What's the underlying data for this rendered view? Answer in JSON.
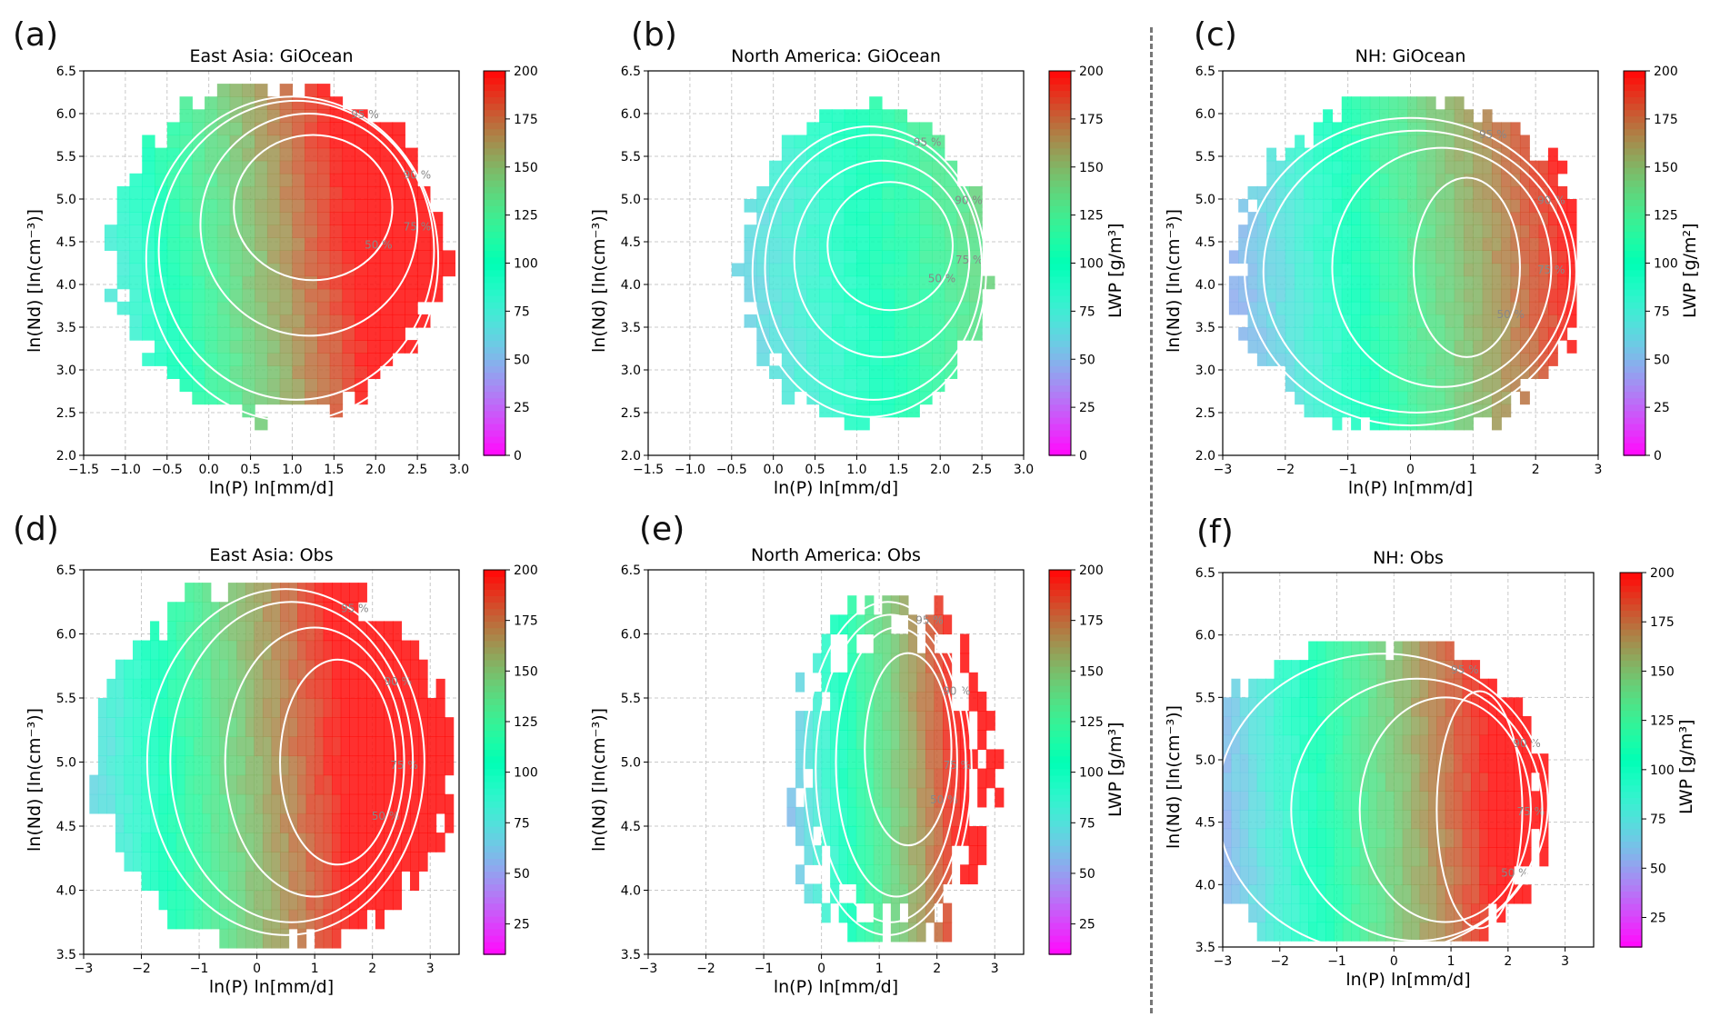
{
  "figure": {
    "divider": "dashed-vertical-separator",
    "colormap": "rainbow"
  },
  "chart_data": [
    {
      "letter": "(a)",
      "type": "heatmap",
      "title": "East Asia: GiOcean",
      "xlabel": "ln(P) ln[mm/d]",
      "ylabel": "ln(Nd) [ln(cm⁻³)]",
      "colorbar_label": "",
      "xlim": [
        -1.5,
        3.0
      ],
      "ylim": [
        2.0,
        6.5
      ],
      "xticks": [
        "−1.5",
        "−1.0",
        "−0.5",
        "0.0",
        "0.5",
        "1.0",
        "1.5",
        "2.0",
        "2.5",
        "3.0"
      ],
      "yticks": [
        "2.0",
        "2.5",
        "3.0",
        "3.5",
        "4.0",
        "4.5",
        "5.0",
        "5.5",
        "6.0",
        "6.5"
      ],
      "clim": [
        0,
        200
      ],
      "cticks": [
        "0",
        "25",
        "50",
        "75",
        "100",
        "125",
        "150",
        "175",
        "200"
      ],
      "grid": true,
      "footprint": {
        "cx": 0.8,
        "cy": 4.4,
        "rx": 2.0,
        "ry": 1.95,
        "xmin": -1.4,
        "xmax": 2.9,
        "ymin": 2.3,
        "ymax": 6.4
      },
      "lwp_trend": {
        "base": 55,
        "per_x": 20,
        "per_y": 6,
        "y_ref": 2.5
      },
      "contours": [
        {
          "label": "50 %",
          "cx": 1.25,
          "cy": 4.9,
          "rx": 0.95,
          "ry": 0.85
        },
        {
          "label": "75 %",
          "cx": 1.2,
          "cy": 4.7,
          "rx": 1.3,
          "ry": 1.3
        },
        {
          "label": "90 %",
          "cx": 1.05,
          "cy": 4.4,
          "rx": 1.65,
          "ry": 1.75
        },
        {
          "label": "95 %",
          "cx": 1.0,
          "cy": 4.3,
          "rx": 1.75,
          "ry": 1.9
        }
      ]
    },
    {
      "letter": "(b)",
      "type": "heatmap",
      "title": "North America: GiOcean",
      "xlabel": "ln(P) ln[mm/d]",
      "ylabel": "ln(Nd) [ln(cm⁻³)]",
      "colorbar_label": "LWP [g/m³]",
      "xlim": [
        -1.5,
        3.0
      ],
      "ylim": [
        2.0,
        6.5
      ],
      "xticks": [
        "−1.5",
        "−1.0",
        "−0.5",
        "0.0",
        "0.5",
        "1.0",
        "1.5",
        "2.0",
        "2.5",
        "3.0"
      ],
      "yticks": [
        "2.0",
        "2.5",
        "3.0",
        "3.5",
        "4.0",
        "4.5",
        "5.0",
        "5.5",
        "6.0",
        "6.5"
      ],
      "clim": [
        0,
        200
      ],
      "cticks": [
        "0",
        "25",
        "50",
        "75",
        "100",
        "125",
        "150",
        "175",
        "200"
      ],
      "grid": true,
      "footprint": {
        "cx": 1.1,
        "cy": 4.2,
        "rx": 1.45,
        "ry": 1.85,
        "xmin": -0.8,
        "xmax": 2.5,
        "ymin": 2.3,
        "ymax": 6.1
      },
      "lwp_trend": {
        "base": 45,
        "per_x": 12,
        "per_y": 3,
        "y_ref": 2.5
      },
      "contours": [
        {
          "label": "50 %",
          "cx": 1.4,
          "cy": 4.45,
          "rx": 0.75,
          "ry": 0.75
        },
        {
          "label": "75 %",
          "cx": 1.3,
          "cy": 4.3,
          "rx": 1.05,
          "ry": 1.15
        },
        {
          "label": "90 %",
          "cx": 1.2,
          "cy": 4.2,
          "rx": 1.3,
          "ry": 1.55
        },
        {
          "label": "95 %",
          "cx": 1.15,
          "cy": 4.15,
          "rx": 1.4,
          "ry": 1.7
        }
      ]
    },
    {
      "letter": "(c)",
      "type": "heatmap",
      "title": "NH: GiOcean",
      "xlabel": "ln(P) ln[mm/d]",
      "ylabel": "ln(Nd) [ln(cm⁻³)]",
      "colorbar_label": "LWP [g/m²]",
      "xlim": [
        -3,
        3
      ],
      "ylim": [
        2.0,
        6.5
      ],
      "xticks": [
        "−3",
        "−2",
        "−1",
        "0",
        "1",
        "2",
        "3"
      ],
      "yticks": [
        "2.0",
        "2.5",
        "3.0",
        "3.5",
        "4.0",
        "4.5",
        "5.0",
        "5.5",
        "6.0",
        "6.5"
      ],
      "clim": [
        0,
        200
      ],
      "cticks": [
        "0",
        "25",
        "50",
        "75",
        "100",
        "125",
        "150",
        "175",
        "200"
      ],
      "grid": true,
      "footprint": {
        "cx": 0.0,
        "cy": 4.2,
        "rx": 2.8,
        "ry": 2.0,
        "xmin": -2.9,
        "xmax": 2.5,
        "ymin": 2.3,
        "ymax": 6.2
      },
      "lwp_trend": {
        "base": 38,
        "per_x": 13,
        "per_y": 4,
        "y_ref": 2.5
      },
      "contours": [
        {
          "label": "50 %",
          "cx": 0.9,
          "cy": 4.2,
          "rx": 0.85,
          "ry": 1.05
        },
        {
          "label": "75 %",
          "cx": 0.5,
          "cy": 4.2,
          "rx": 1.75,
          "ry": 1.4
        },
        {
          "label": "90 %",
          "cx": 0.1,
          "cy": 4.15,
          "rx": 2.45,
          "ry": 1.65
        },
        {
          "label": "95 %",
          "cx": 0.0,
          "cy": 4.15,
          "rx": 2.65,
          "ry": 1.8
        }
      ]
    },
    {
      "letter": "(d)",
      "type": "heatmap",
      "title": "East Asia: Obs",
      "xlabel": "ln(P) ln[mm/d]",
      "ylabel": "ln(Nd) [ln(cm⁻³)]",
      "colorbar_label": "",
      "xlim": [
        -3,
        3.5
      ],
      "ylim": [
        3.5,
        6.5
      ],
      "xticks": [
        "−3",
        "−2",
        "−1",
        "0",
        "1",
        "2",
        "3"
      ],
      "yticks": [
        "3.5",
        "4.0",
        "4.5",
        "5.0",
        "5.5",
        "6.0",
        "6.5"
      ],
      "clim": [
        10,
        200
      ],
      "cticks": [
        "25",
        "50",
        "75",
        "100",
        "125",
        "150",
        "175",
        "200"
      ],
      "grid": true,
      "footprint": {
        "cx": 0.3,
        "cy": 5.0,
        "rx": 3.1,
        "ry": 1.45,
        "xmin": -2.9,
        "xmax": 3.3,
        "ymin": 3.55,
        "ymax": 6.35
      },
      "lwp_trend": {
        "base": 65,
        "per_x": 14,
        "per_y": 4,
        "y_ref": 4.0
      },
      "contours": [
        {
          "label": "50 %",
          "cx": 1.4,
          "cy": 5.0,
          "rx": 1.0,
          "ry": 0.8
        },
        {
          "label": "75 %",
          "cx": 1.0,
          "cy": 5.0,
          "rx": 1.55,
          "ry": 1.05
        },
        {
          "label": "90 %",
          "cx": 0.6,
          "cy": 5.0,
          "rx": 2.1,
          "ry": 1.25
        },
        {
          "label": "95 %",
          "cx": 0.5,
          "cy": 5.0,
          "rx": 2.4,
          "ry": 1.35
        }
      ]
    },
    {
      "letter": "(e)",
      "type": "heatmap",
      "title": "North America: Obs",
      "xlabel": "ln(P) ln[mm/d]",
      "ylabel": "ln(Nd) [ln(cm⁻³)]",
      "colorbar_label": "LWP [g/m³]",
      "xlim": [
        -3,
        3.5
      ],
      "ylim": [
        3.5,
        6.5
      ],
      "xticks": [
        "−3",
        "−2",
        "−1",
        "0",
        "1",
        "2",
        "3"
      ],
      "yticks": [
        "3.5",
        "4.0",
        "4.5",
        "5.0",
        "5.5",
        "6.0",
        "6.5"
      ],
      "clim": [
        10,
        200
      ],
      "cticks": [
        "25",
        "50",
        "75",
        "100",
        "125",
        "150",
        "175",
        "200"
      ],
      "grid": true,
      "footprint": {
        "cx": 1.2,
        "cy": 4.9,
        "rx": 1.8,
        "ry": 1.4,
        "xmin": -0.6,
        "xmax": 3.0,
        "ymin": 3.6,
        "ymax": 6.3
      },
      "lwp_trend": {
        "base": 55,
        "per_x": 22,
        "per_y": 4,
        "y_ref": 4.0
      },
      "contours": [
        {
          "label": "50 %",
          "cx": 1.5,
          "cy": 5.1,
          "rx": 0.75,
          "ry": 0.75
        },
        {
          "label": "75 %",
          "cx": 1.3,
          "cy": 5.0,
          "rx": 1.05,
          "ry": 1.05
        },
        {
          "label": "90 %",
          "cx": 1.2,
          "cy": 4.95,
          "rx": 1.3,
          "ry": 1.2
        },
        {
          "label": "95 %",
          "cx": 1.15,
          "cy": 4.95,
          "rx": 1.45,
          "ry": 1.3
        }
      ]
    },
    {
      "letter": "(f)",
      "type": "heatmap",
      "title": "NH: Obs",
      "xlabel": "ln(P) ln[mm/d]",
      "ylabel": "ln(Nd) [ln(cm⁻³)]",
      "colorbar_label": "LWP [g/m³]",
      "xlim": [
        -3,
        3.5
      ],
      "ylim": [
        3.5,
        6.5
      ],
      "xticks": [
        "−3",
        "−2",
        "−1",
        "0",
        "1",
        "2",
        "3"
      ],
      "yticks": [
        "3.5",
        "4.0",
        "4.5",
        "5.0",
        "5.5",
        "6.0",
        "6.5"
      ],
      "clim": [
        10,
        200
      ],
      "cticks": [
        "25",
        "50",
        "75",
        "100",
        "125",
        "150",
        "175",
        "200"
      ],
      "grid": true,
      "footprint": {
        "cx": -0.4,
        "cy": 4.65,
        "rx": 3.1,
        "ry": 1.3,
        "xmin": -3.0,
        "xmax": 2.6,
        "ymin": 3.55,
        "ymax": 5.95
      },
      "lwp_trend": {
        "base": 55,
        "per_x": 14,
        "per_y": 3,
        "y_ref": 4.0
      },
      "contours": [
        {
          "label": "50 %",
          "cx": 1.5,
          "cy": 4.6,
          "rx": 0.75,
          "ry": 0.95
        },
        {
          "label": "75 %",
          "cx": 0.9,
          "cy": 4.6,
          "rx": 1.5,
          "ry": 0.9
        },
        {
          "label": "90 %",
          "cx": 0.4,
          "cy": 4.6,
          "rx": 2.2,
          "ry": 1.05
        },
        {
          "label": "95 %",
          "cx": -0.2,
          "cy": 4.65,
          "rx": 2.9,
          "ry": 1.2
        }
      ]
    }
  ]
}
